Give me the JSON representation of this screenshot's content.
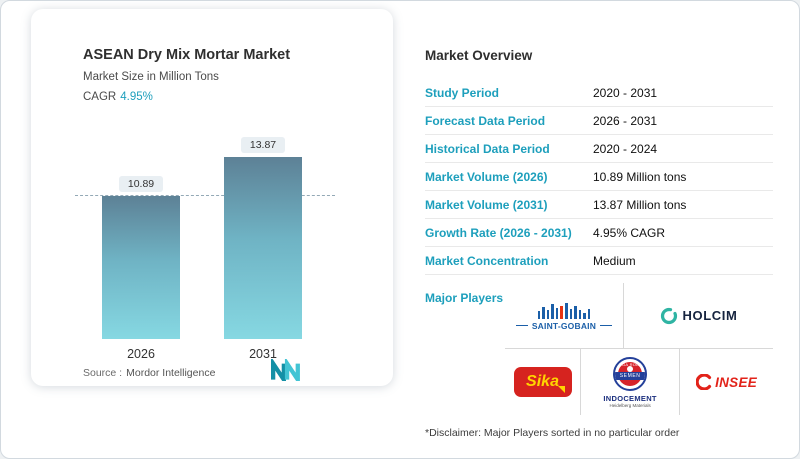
{
  "colors": {
    "accent_teal": "#1d9fbc",
    "bar_gradient_top": "#5d8196",
    "bar_gradient_bottom": "#86d8e2",
    "saint_gobain_blue": "#1b5fa8",
    "holcim_navy": "#16243f",
    "holcim_teal": "#2fb4a3",
    "sika_red": "#d6231f",
    "sika_yellow": "#ffd500",
    "indocement_blue": "#24409a",
    "indocement_red": "#d6232a",
    "insee_red": "#e2231a"
  },
  "card": {
    "title": "ASEAN Dry Mix Mortar Market",
    "subtitle": "Market Size in Million Tons",
    "cagr_label": "CAGR",
    "cagr_value": "4.95%",
    "source_label": "Source :",
    "source_value": "Mordor Intelligence",
    "logo_icon": "mordor-intelligence-logo"
  },
  "chart_data": {
    "type": "bar",
    "title": "ASEAN Dry Mix Mortar Market",
    "ylabel": "Market Size in Million Tons",
    "categories": [
      "2026",
      "2031"
    ],
    "values": [
      10.89,
      13.87
    ],
    "value_labels": [
      "10.89",
      "13.87"
    ],
    "ylim": [
      0,
      16
    ],
    "reference_line": 10.89,
    "grid": "off",
    "legend": "none"
  },
  "overview": {
    "title": "Market Overview",
    "rows": [
      {
        "label": "Study Period",
        "value": "2020 - 2031"
      },
      {
        "label": "Forecast Data Period",
        "value": "2026 - 2031"
      },
      {
        "label": "Historical Data Period",
        "value": "2020 - 2024"
      },
      {
        "label": "Market Volume (2026)",
        "value": "10.89 Million tons"
      },
      {
        "label": "Market Volume (2031)",
        "value": "13.87 Million tons"
      },
      {
        "label": "Growth Rate (2026 - 2031)",
        "value": "4.95% CAGR"
      },
      {
        "label": "Market Concentration",
        "value": "Medium"
      }
    ],
    "major_players_label": "Major Players",
    "disclaimer": "*Disclaimer: Major Players sorted in no particular order"
  },
  "players": {
    "saint_gobain": {
      "name": "SAINT-GOBAIN",
      "icon": "saint-gobain-skyline-icon"
    },
    "holcim": {
      "name": "HOLCIM",
      "icon": "holcim-circle-icon"
    },
    "sika": {
      "name": "Sika",
      "icon": "sika-red-badge-icon"
    },
    "indocement": {
      "top_text": "TIGA RODA",
      "banner": "SEMEN",
      "name": "INDOCEMENT",
      "sub": "Heidelberg Materials",
      "icon": "tiga-roda-circle-icon"
    },
    "insee": {
      "name": "INSEE",
      "icon": "insee-swoosh-icon"
    }
  }
}
